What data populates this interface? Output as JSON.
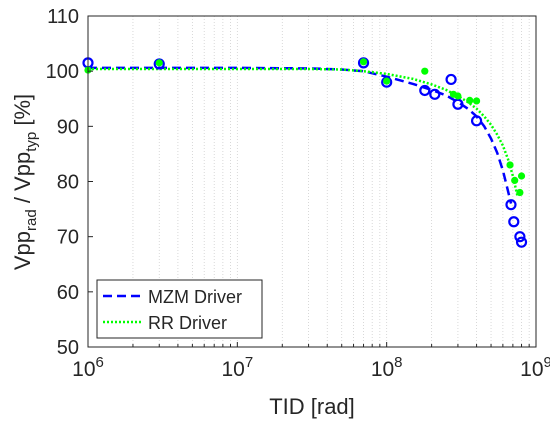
{
  "chart_data": {
    "type": "scatter",
    "xscale": "log",
    "xlim": [
      1000000,
      1000000000
    ],
    "ylim": [
      50,
      110
    ],
    "xlabel": "TID [rad]",
    "ylabel": {
      "parts": [
        "Vpp",
        "rad",
        " / Vpp",
        "typ",
        " [%]"
      ]
    },
    "xticks": [
      {
        "value": 1000000,
        "base": "10",
        "exp": "6"
      },
      {
        "value": 10000000,
        "base": "10",
        "exp": "7"
      },
      {
        "value": 100000000,
        "base": "10",
        "exp": "8"
      },
      {
        "value": 1000000000,
        "base": "10",
        "exp": "9"
      }
    ],
    "yticks": [
      "50",
      "60",
      "70",
      "80",
      "90",
      "100",
      "110"
    ],
    "grid": "x-major-and-minor dotted",
    "legend_position": "bottom-left",
    "series": [
      {
        "name": "MZM Driver",
        "color": "#0000ff",
        "marker": "open-circle",
        "points": [
          [
            1000000,
            101.5
          ],
          [
            3000000,
            101.3
          ],
          [
            70000000,
            101.5
          ],
          [
            100000000,
            98.0
          ],
          [
            180000000,
            96.5
          ],
          [
            210000000,
            95.8
          ],
          [
            270000000,
            98.5
          ],
          [
            300000000,
            94.0
          ],
          [
            400000000,
            91.0
          ],
          [
            680000000,
            75.8
          ],
          [
            710000000,
            72.7
          ],
          [
            780000000,
            70.0
          ],
          [
            800000000,
            69.0
          ]
        ],
        "fit": {
          "style": "dashed",
          "points": [
            [
              1000000,
              100.6
            ],
            [
              3000000,
              100.6
            ],
            [
              10000000,
              100.6
            ],
            [
              30000000,
              100.5
            ],
            [
              50000000,
              100.3
            ],
            [
              70000000,
              100.0
            ],
            [
              100000000,
              99.0
            ],
            [
              150000000,
              97.7
            ],
            [
              200000000,
              96.6
            ],
            [
              250000000,
              95.6
            ],
            [
              300000000,
              94.4
            ],
            [
              350000000,
              93.2
            ],
            [
              400000000,
              91.8
            ],
            [
              450000000,
              90.0
            ],
            [
              500000000,
              87.8
            ],
            [
              550000000,
              85.2
            ],
            [
              600000000,
              82.0
            ],
            [
              650000000,
              78.2
            ],
            [
              680000000,
              76.0
            ]
          ]
        }
      },
      {
        "name": "RR Driver",
        "color": "#00ff00",
        "marker": "filled-dot",
        "points": [
          [
            1000000,
            100.2
          ],
          [
            3000000,
            101.5
          ],
          [
            70000000,
            101.7
          ],
          [
            100000000,
            98.2
          ],
          [
            180000000,
            100.0
          ],
          [
            280000000,
            95.8
          ],
          [
            300000000,
            95.5
          ],
          [
            360000000,
            94.7
          ],
          [
            400000000,
            94.6
          ],
          [
            670000000,
            83.0
          ],
          [
            720000000,
            80.2
          ],
          [
            780000000,
            78.0
          ],
          [
            800000000,
            81.0
          ]
        ],
        "fit": {
          "style": "dotted",
          "points": [
            [
              1000000,
              100.4
            ],
            [
              3000000,
              100.4
            ],
            [
              10000000,
              100.4
            ],
            [
              30000000,
              100.4
            ],
            [
              50000000,
              100.3
            ],
            [
              70000000,
              100.0
            ],
            [
              100000000,
              99.5
            ],
            [
              150000000,
              98.6
            ],
            [
              200000000,
              97.6
            ],
            [
              250000000,
              96.6
            ],
            [
              300000000,
              95.5
            ],
            [
              350000000,
              94.4
            ],
            [
              400000000,
              93.2
            ],
            [
              450000000,
              91.8
            ],
            [
              500000000,
              90.3
            ],
            [
              550000000,
              88.5
            ],
            [
              600000000,
              86.5
            ],
            [
              650000000,
              84.0
            ],
            [
              700000000,
              81.0
            ],
            [
              750000000,
              77.5
            ]
          ]
        }
      }
    ]
  }
}
